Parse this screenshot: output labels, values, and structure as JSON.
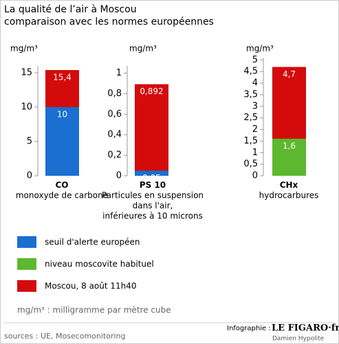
{
  "header": {
    "title": "La qualité de l’air à Moscou",
    "subtitle": "comparaison avec les normes européennes"
  },
  "chart_data": [
    {
      "type": "bar",
      "y_label": "mg/m³",
      "categories": [
        "CO"
      ],
      "category_description": [
        "monoxyde de carbone"
      ],
      "series": [
        {
          "name": "seuil d'alerte européen",
          "color": "#1a6fd0",
          "values": [
            10
          ],
          "value_labels": [
            "10"
          ]
        },
        {
          "name": "Moscou, 8 août 11h40",
          "color": "#d40b0b",
          "values": [
            15.4
          ],
          "value_labels": [
            "15,4"
          ]
        }
      ],
      "ylim": [
        0,
        16
      ],
      "yticks": [
        0,
        5,
        10,
        15
      ]
    },
    {
      "type": "bar",
      "y_label": "mg/m³",
      "categories": [
        "PS 10"
      ],
      "category_description": [
        "Particules en suspension",
        "dans l'air,",
        "inférieures à 10 microns"
      ],
      "series": [
        {
          "name": "seuil d'alerte européen",
          "color": "#1a6fd0",
          "values": [
            0.05
          ],
          "value_labels": [
            "0,05"
          ]
        },
        {
          "name": "Moscou, 8 août 11h40",
          "color": "#d40b0b",
          "values": [
            0.892
          ],
          "value_labels": [
            "0,892"
          ]
        }
      ],
      "ylim": [
        0,
        1.07
      ],
      "yticks": [
        0,
        {
          "value": 0.2,
          "label": "0,2"
        },
        {
          "value": 0.4,
          "label": "0,4"
        },
        {
          "value": 0.6,
          "label": "0,6"
        },
        {
          "value": 0.8,
          "label": "0,8"
        },
        1
      ]
    },
    {
      "type": "bar",
      "y_label": "mg/m³",
      "categories": [
        "CHx"
      ],
      "category_description": [
        "hydrocarbures"
      ],
      "series": [
        {
          "name": "niveau moscovite habituel",
          "color": "#5cb82e",
          "values": [
            1.6
          ],
          "value_labels": [
            "1,6"
          ]
        },
        {
          "name": "Moscou, 8 août 11h40",
          "color": "#d40b0b",
          "values": [
            4.7
          ],
          "value_labels": [
            "4,7"
          ]
        }
      ],
      "ylim": [
        0,
        5.1
      ],
      "yticks": [
        0,
        {
          "value": 0.5,
          "label": "0,5"
        },
        1,
        {
          "value": 1.5,
          "label": "1,5"
        },
        2,
        {
          "value": 2.5,
          "label": "2,5"
        },
        3,
        {
          "value": 3.5,
          "label": "3,5"
        },
        4,
        {
          "value": 4.5,
          "label": "4,5"
        },
        5
      ]
    }
  ],
  "footnote": "mg/m³ : milligramme par mètre cube",
  "credit": {
    "prefix": "Infographie :",
    "brand": "LE FIGARO·fr",
    "author": "Damien Hypolite"
  },
  "sources": "sources : UE, Mosecomonitoring"
}
